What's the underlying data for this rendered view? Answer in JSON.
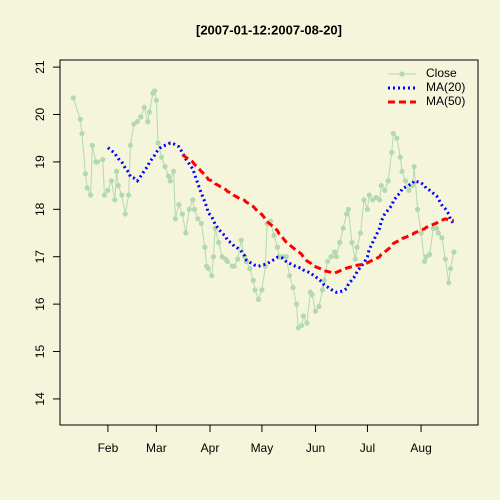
{
  "chart_data": {
    "type": "line",
    "title": "[2007-01-12:2007-08-20]",
    "x": [
      11,
      15,
      16,
      18,
      19,
      21,
      22,
      24,
      25,
      28,
      29,
      31,
      33,
      35,
      36,
      37,
      39,
      41,
      43,
      44,
      46,
      48,
      50,
      52,
      54,
      55,
      57,
      58,
      59,
      60,
      62,
      64,
      66,
      67,
      69,
      70,
      72,
      74,
      76,
      78,
      80,
      81,
      83,
      85,
      87,
      88,
      89,
      91,
      92,
      93,
      95,
      97,
      99,
      100,
      103,
      104,
      106,
      108,
      110,
      111,
      113,
      115,
      116,
      118,
      120,
      122,
      123,
      125,
      127,
      129,
      130,
      132,
      134,
      136,
      138,
      140,
      141,
      143,
      144,
      146,
      148,
      149,
      151,
      153,
      155,
      156,
      158,
      160,
      162,
      163,
      165,
      167,
      169,
      170,
      172,
      174,
      175,
      177,
      179,
      181,
      182,
      184,
      186,
      188,
      189,
      191,
      193,
      195,
      196,
      198,
      200,
      201,
      203,
      205,
      207,
      208,
      210,
      212,
      214,
      215,
      217,
      219,
      221,
      222,
      224,
      226,
      228,
      229,
      231
    ],
    "series": [
      {
        "name": "Close",
        "color": "#b3d9b0",
        "style": "solid",
        "markers": true,
        "values": [
          20.35,
          19.9,
          19.6,
          18.75,
          18.45,
          18.3,
          19.35,
          19.0,
          19.0,
          19.05,
          18.3,
          18.4,
          18.6,
          18.2,
          18.8,
          18.5,
          18.3,
          17.9,
          18.3,
          19.35,
          19.8,
          19.85,
          19.95,
          20.15,
          19.85,
          20.05,
          20.45,
          20.5,
          20.3,
          19.4,
          19.1,
          18.9,
          18.7,
          18.6,
          18.8,
          17.8,
          18.1,
          17.9,
          17.5,
          18.0,
          18.2,
          18.0,
          17.8,
          17.7,
          17.2,
          16.8,
          16.75,
          16.6,
          17.0,
          17.6,
          17.3,
          17.0,
          16.95,
          16.9,
          16.8,
          16.8,
          16.95,
          17.35,
          17.0,
          16.9,
          16.75,
          16.5,
          16.3,
          16.1,
          16.3,
          16.8,
          17.7,
          17.75,
          17.45,
          17.2,
          17.0,
          17.0,
          17.0,
          16.6,
          16.35,
          16.0,
          15.5,
          15.55,
          15.75,
          15.6,
          16.25,
          16.2,
          15.85,
          15.95,
          16.3,
          16.5,
          16.9,
          17.0,
          17.1,
          17.0,
          17.3,
          17.6,
          17.9,
          18.0,
          17.3,
          16.95,
          17.2,
          17.5,
          18.2,
          18.0,
          18.3,
          18.2,
          18.25,
          18.2,
          18.5,
          18.4,
          18.6,
          19.2,
          19.6,
          19.5,
          19.1,
          18.8,
          18.6,
          18.4,
          18.5,
          18.9,
          18.0,
          17.5,
          16.9,
          17.0,
          17.05,
          17.6,
          17.6,
          17.5,
          17.4,
          16.95,
          16.45,
          16.75,
          17.1
        ]
      },
      {
        "name": "MA(20)",
        "color": "#0000ff",
        "style": "dotted",
        "markers": false,
        "values": [
          null,
          null,
          null,
          null,
          null,
          null,
          null,
          null,
          null,
          null,
          null,
          19.3,
          19.24,
          19.18,
          19.12,
          19.07,
          19.0,
          18.87,
          18.78,
          18.69,
          18.66,
          18.6,
          18.7,
          18.81,
          18.91,
          18.99,
          19.09,
          19.14,
          19.2,
          19.26,
          19.32,
          19.35,
          19.38,
          19.4,
          19.38,
          19.36,
          19.32,
          19.2,
          19.06,
          18.96,
          18.85,
          18.75,
          18.54,
          18.34,
          18.16,
          18.06,
          17.93,
          17.84,
          17.77,
          17.68,
          17.58,
          17.5,
          17.43,
          17.35,
          17.27,
          17.22,
          17.18,
          17.12,
          17.02,
          16.93,
          16.88,
          16.85,
          16.82,
          16.8,
          16.82,
          16.84,
          16.85,
          16.9,
          16.94,
          16.99,
          16.99,
          16.97,
          16.9,
          16.86,
          16.82,
          16.79,
          16.78,
          16.75,
          16.72,
          16.69,
          16.66,
          16.63,
          16.58,
          16.52,
          16.46,
          16.4,
          16.36,
          16.31,
          16.27,
          16.25,
          16.26,
          16.28,
          16.33,
          16.42,
          16.51,
          16.6,
          16.69,
          16.78,
          16.87,
          17.0,
          17.15,
          17.3,
          17.45,
          17.6,
          17.75,
          17.9,
          17.99,
          18.08,
          18.17,
          18.28,
          18.35,
          18.43,
          18.47,
          18.51,
          18.54,
          18.6,
          18.58,
          18.56,
          18.5,
          18.44,
          18.4,
          18.34,
          18.28,
          18.22,
          18.09,
          18.01,
          17.9,
          17.79,
          17.68
        ]
      },
      {
        "name": "MA(50)",
        "color": "#ff0000",
        "style": "dashed",
        "markers": false,
        "values": [
          null,
          null,
          null,
          null,
          null,
          null,
          null,
          null,
          null,
          null,
          null,
          null,
          null,
          null,
          null,
          null,
          null,
          null,
          null,
          null,
          null,
          null,
          null,
          null,
          null,
          null,
          null,
          null,
          null,
          null,
          null,
          null,
          null,
          null,
          null,
          null,
          null,
          19.15,
          19.1,
          19.05,
          19.0,
          18.95,
          18.88,
          18.8,
          18.73,
          18.69,
          18.63,
          18.6,
          18.58,
          18.54,
          18.5,
          18.46,
          18.42,
          18.38,
          18.33,
          18.29,
          18.25,
          18.21,
          18.19,
          18.15,
          18.11,
          18.06,
          18.02,
          17.94,
          17.89,
          17.8,
          17.74,
          17.68,
          17.62,
          17.55,
          17.48,
          17.4,
          17.31,
          17.25,
          17.19,
          17.13,
          17.11,
          17.05,
          16.99,
          16.91,
          16.87,
          16.82,
          16.79,
          16.76,
          16.73,
          16.7,
          16.69,
          16.67,
          16.65,
          16.67,
          16.7,
          16.73,
          16.76,
          16.77,
          16.79,
          16.8,
          16.82,
          16.83,
          16.85,
          16.87,
          16.89,
          16.93,
          16.96,
          17.0,
          17.05,
          17.1,
          17.16,
          17.22,
          17.28,
          17.32,
          17.35,
          17.38,
          17.41,
          17.44,
          17.47,
          17.5,
          17.53,
          17.56,
          17.59,
          17.62,
          17.65,
          17.68,
          17.71,
          17.74,
          17.77,
          17.8,
          17.78,
          17.77,
          17.76
        ]
      }
    ],
    "xlim": [
      3.3,
      244.9
    ],
    "xticks": [
      {
        "value": 31,
        "label": "Feb"
      },
      {
        "value": 59,
        "label": "Mar"
      },
      {
        "value": 90,
        "label": "Apr"
      },
      {
        "value": 120,
        "label": "May"
      },
      {
        "value": 151,
        "label": "Jun"
      },
      {
        "value": 181,
        "label": "Jul"
      },
      {
        "value": 212,
        "label": "Aug"
      }
    ],
    "ylim": [
      13.45,
      21.15
    ],
    "yticks": [
      14,
      15,
      16,
      17,
      18,
      19,
      20,
      21
    ],
    "grid": false,
    "legend": "topright"
  }
}
